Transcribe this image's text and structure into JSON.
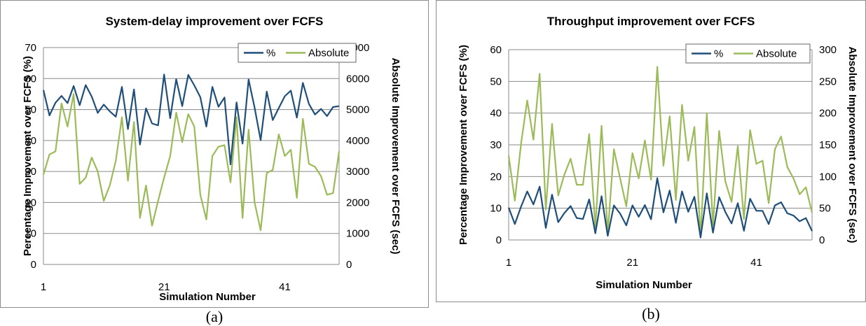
{
  "chart_data": [
    {
      "type": "line",
      "title": "System-delay improvement over FCFS",
      "xlabel": "Simulation Number",
      "ylabel": "Percentage Improvement over FCFS (%)",
      "y2label": "Absolute Improvement over FCFS (sec)",
      "caption": "(a)",
      "x": [
        1,
        2,
        3,
        4,
        5,
        6,
        7,
        8,
        9,
        10,
        11,
        12,
        13,
        14,
        15,
        16,
        17,
        18,
        19,
        20,
        21,
        22,
        23,
        24,
        25,
        26,
        27,
        28,
        29,
        30,
        31,
        32,
        33,
        34,
        35,
        36,
        37,
        38,
        39,
        40,
        41,
        42,
        43,
        44,
        45,
        46,
        47,
        48,
        49,
        50
      ],
      "xticks": [
        1,
        21,
        41
      ],
      "xlim": [
        1,
        50
      ],
      "ylim": [
        0,
        70
      ],
      "yticks": [
        0,
        10,
        20,
        30,
        40,
        50,
        60,
        70
      ],
      "y2lim": [
        0,
        7000
      ],
      "y2ticks": [
        0,
        1000,
        2000,
        3000,
        4000,
        5000,
        6000,
        7000
      ],
      "legend_position": "top-right",
      "grid": true,
      "series": [
        {
          "name": "%",
          "axis": "left",
          "color": "#1f4e79",
          "values": [
            56.3,
            48.1,
            52.2,
            54.4,
            52.1,
            57.6,
            51.4,
            57.9,
            54.2,
            48.9,
            51.6,
            49.4,
            47.7,
            57.3,
            43.7,
            56.5,
            38.7,
            50.4,
            45.5,
            44.9,
            61.3,
            47.2,
            59.8,
            51.1,
            61.2,
            57.8,
            54,
            44.5,
            57.3,
            50.9,
            53.9,
            32.3,
            52.3,
            39,
            59.7,
            50.6,
            40.1,
            55.8,
            46.6,
            50.5,
            54.3,
            56.1,
            47.4,
            58.6,
            51.8,
            48.4,
            50.2,
            47.9,
            50.8,
            51.1
          ]
        },
        {
          "name": "Absolute",
          "axis": "right",
          "color": "#9bbb59",
          "values": [
            2900,
            3550,
            3650,
            5200,
            4450,
            5500,
            2600,
            2800,
            3450,
            3000,
            2050,
            2550,
            3350,
            4750,
            2700,
            4600,
            1500,
            2550,
            1250,
            2050,
            2800,
            3500,
            4900,
            3950,
            4850,
            4450,
            2250,
            1450,
            3500,
            3800,
            3850,
            2650,
            4750,
            1500,
            4350,
            2000,
            1100,
            2950,
            3050,
            4200,
            3500,
            3700,
            2150,
            4700,
            3250,
            3150,
            2850,
            2250,
            2300,
            3650
          ]
        }
      ]
    },
    {
      "type": "line",
      "title": "Throughput improvement over FCFS",
      "xlabel": "Simulation Number",
      "ylabel": "Percentage Improvement over FCFS (%)",
      "y2label": "Absolute Improvement over FCFS (sec)",
      "caption": "(b)",
      "x": [
        1,
        2,
        3,
        4,
        5,
        6,
        7,
        8,
        9,
        10,
        11,
        12,
        13,
        14,
        15,
        16,
        17,
        18,
        19,
        20,
        21,
        22,
        23,
        24,
        25,
        26,
        27,
        28,
        29,
        30,
        31,
        32,
        33,
        34,
        35,
        36,
        37,
        38,
        39,
        40,
        41,
        42,
        43,
        44,
        45,
        46,
        47,
        48,
        49,
        50
      ],
      "xticks": [
        1,
        21,
        41
      ],
      "xlim": [
        1,
        50
      ],
      "ylim": [
        0,
        60
      ],
      "yticks": [
        0,
        10,
        20,
        30,
        40,
        50,
        60
      ],
      "y2lim": [
        0,
        300
      ],
      "y2ticks": [
        0,
        50,
        100,
        150,
        200,
        250,
        300
      ],
      "legend_position": "top-right",
      "grid": true,
      "series": [
        {
          "name": "%",
          "axis": "left",
          "color": "#1f4e79",
          "values": [
            10.2,
            5,
            10.5,
            15.3,
            11.2,
            16.8,
            3.8,
            14.3,
            5.6,
            8.5,
            10.7,
            6.9,
            6.6,
            12.8,
            2.1,
            13.8,
            1.3,
            10.9,
            8.3,
            4.6,
            10.9,
            7.3,
            11,
            6.5,
            19.5,
            8.7,
            15.6,
            5.4,
            15.3,
            8.9,
            13.6,
            0.8,
            14.7,
            2.3,
            13.5,
            8.8,
            5.2,
            11.6,
            2.9,
            13,
            9.2,
            9.2,
            5,
            10.9,
            11.9,
            8.4,
            7.7,
            5.9,
            6.9,
            2.8
          ]
        },
        {
          "name": "Absolute",
          "axis": "right",
          "color": "#9bbb59",
          "values": [
            133,
            62,
            152,
            220,
            158,
            262,
            48,
            183,
            70,
            103,
            128,
            87,
            87,
            167,
            20,
            180,
            10,
            143,
            97,
            53,
            137,
            97,
            157,
            95,
            273,
            117,
            195,
            63,
            213,
            125,
            178,
            5,
            200,
            23,
            172,
            92,
            60,
            148,
            33,
            173,
            120,
            125,
            58,
            143,
            163,
            115,
            97,
            72,
            83,
            43
          ]
        }
      ]
    }
  ]
}
